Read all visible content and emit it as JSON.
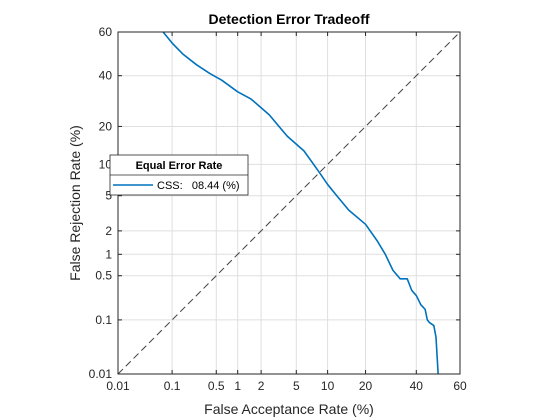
{
  "chart_data": {
    "type": "line",
    "title": "Detection Error Tradeoff",
    "xlabel": "False Acceptance Rate (%)",
    "ylabel": "False Rejection Rate (%)",
    "x_scale": "probit",
    "y_scale": "probit",
    "xlim": [
      0.01,
      60
    ],
    "ylim": [
      0.01,
      60
    ],
    "x_ticks": [
      0.01,
      0.1,
      0.5,
      1,
      2,
      5,
      10,
      20,
      40,
      60
    ],
    "y_ticks": [
      0.01,
      0.1,
      0.5,
      1,
      2,
      5,
      10,
      20,
      40,
      60
    ],
    "grid": true,
    "legend": {
      "title": "Equal Error Rate",
      "location": "left",
      "entries": [
        "CSS:   08.44 (%)"
      ]
    },
    "series": [
      {
        "name": "CSS",
        "color": "#0072BD",
        "x": [
          0.07,
          0.1,
          0.15,
          0.25,
          0.4,
          0.6,
          1.0,
          1.5,
          2.5,
          4.0,
          6.0,
          8.44,
          10,
          12,
          15,
          20,
          24,
          27,
          30,
          33,
          36,
          38,
          40,
          42,
          44,
          45,
          46,
          48,
          49,
          50
        ],
        "y": [
          60,
          55,
          50,
          45,
          41,
          38,
          33,
          30,
          24,
          17,
          13,
          8.44,
          6.5,
          5.0,
          3.5,
          2.4,
          1.5,
          1.0,
          0.6,
          0.45,
          0.45,
          0.3,
          0.25,
          0.18,
          0.15,
          0.1,
          0.09,
          0.08,
          0.05,
          0.01
        ]
      },
      {
        "name": "",
        "color": "#404040",
        "dashed": true,
        "x": [
          0.01,
          60
        ],
        "y": [
          0.01,
          60
        ]
      }
    ]
  }
}
